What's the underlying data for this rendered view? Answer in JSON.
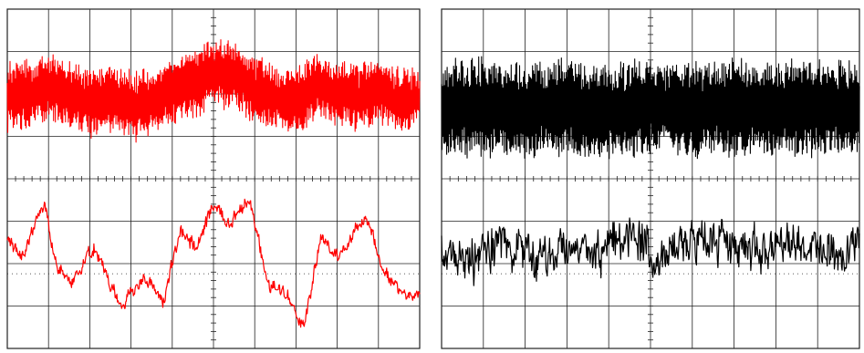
{
  "colors": {
    "background": "#ffffff",
    "grid": "#222222",
    "left_trace": "#ff0000",
    "right_trace": "#000000"
  },
  "chart_data": [
    {
      "type": "line",
      "title": "",
      "xlabel": "",
      "ylabel": "",
      "grid": true,
      "divisions": {
        "x": 10,
        "y": 8
      },
      "trace_color": "#ff0000",
      "xlim": [
        0,
        10
      ],
      "ylim": [
        -4,
        4
      ],
      "series": [
        {
          "x": [
            0,
            0.5,
            1.0,
            1.5,
            2.0,
            2.5,
            3.0,
            3.5,
            4.0,
            4.5,
            5.0,
            5.5,
            6.0,
            6.5,
            7.0,
            7.5,
            8.0,
            8.5,
            9.0,
            9.5,
            10.0
          ],
          "values": [
            1.9,
            2.0,
            2.2,
            2.0,
            1.8,
            1.9,
            1.7,
            1.8,
            2.1,
            2.2,
            2.5,
            2.4,
            2.1,
            1.9,
            1.8,
            2.2,
            2.0,
            1.9,
            2.1,
            1.8,
            1.9
          ],
          "amplitude": 0.75
        },
        {
          "x": [
            0,
            0.35,
            0.9,
            1.2,
            1.6,
            2.1,
            2.5,
            2.8,
            3.3,
            3.8,
            4.2,
            4.6,
            5.0,
            5.4,
            5.9,
            6.3,
            6.8,
            7.2,
            7.6,
            8.0,
            8.3,
            8.7,
            9.1,
            9.5,
            10.0
          ],
          "values": [
            -1.4,
            -1.8,
            -0.6,
            -2.1,
            -2.4,
            -1.6,
            -2.5,
            -3.0,
            -2.3,
            -2.9,
            -1.2,
            -1.7,
            -0.6,
            -1.1,
            -0.5,
            -2.4,
            -2.8,
            -3.5,
            -1.4,
            -1.9,
            -1.5,
            -0.8,
            -2.2,
            -2.6,
            -2.8
          ],
          "amplitude": 0.18
        }
      ]
    },
    {
      "type": "line",
      "title": "",
      "xlabel": "",
      "ylabel": "",
      "grid": true,
      "divisions": {
        "x": 10,
        "y": 8
      },
      "trace_color": "#000000",
      "xlim": [
        0,
        10
      ],
      "ylim": [
        -4,
        4
      ],
      "series": [
        {
          "x": [
            0,
            1,
            2,
            3,
            4,
            5,
            6,
            7,
            8,
            9,
            10
          ],
          "values": [
            1.6,
            1.7,
            1.6,
            1.7,
            1.6,
            1.7,
            1.6,
            1.7,
            1.6,
            1.7,
            1.6
          ],
          "amplitude": 1.1
        },
        {
          "x": [
            0,
            0.8,
            1.5,
            2.2,
            3.0,
            3.8,
            4.5,
            5.2,
            6.0,
            6.8,
            7.5,
            8.2,
            9.0,
            9.6,
            10.0
          ],
          "values": [
            -1.6,
            -1.9,
            -1.5,
            -1.8,
            -1.6,
            -1.7,
            -1.3,
            -1.8,
            -1.5,
            -1.6,
            -1.7,
            -1.5,
            -1.6,
            -1.8,
            -1.4
          ],
          "amplitude": 0.55
        }
      ]
    }
  ]
}
